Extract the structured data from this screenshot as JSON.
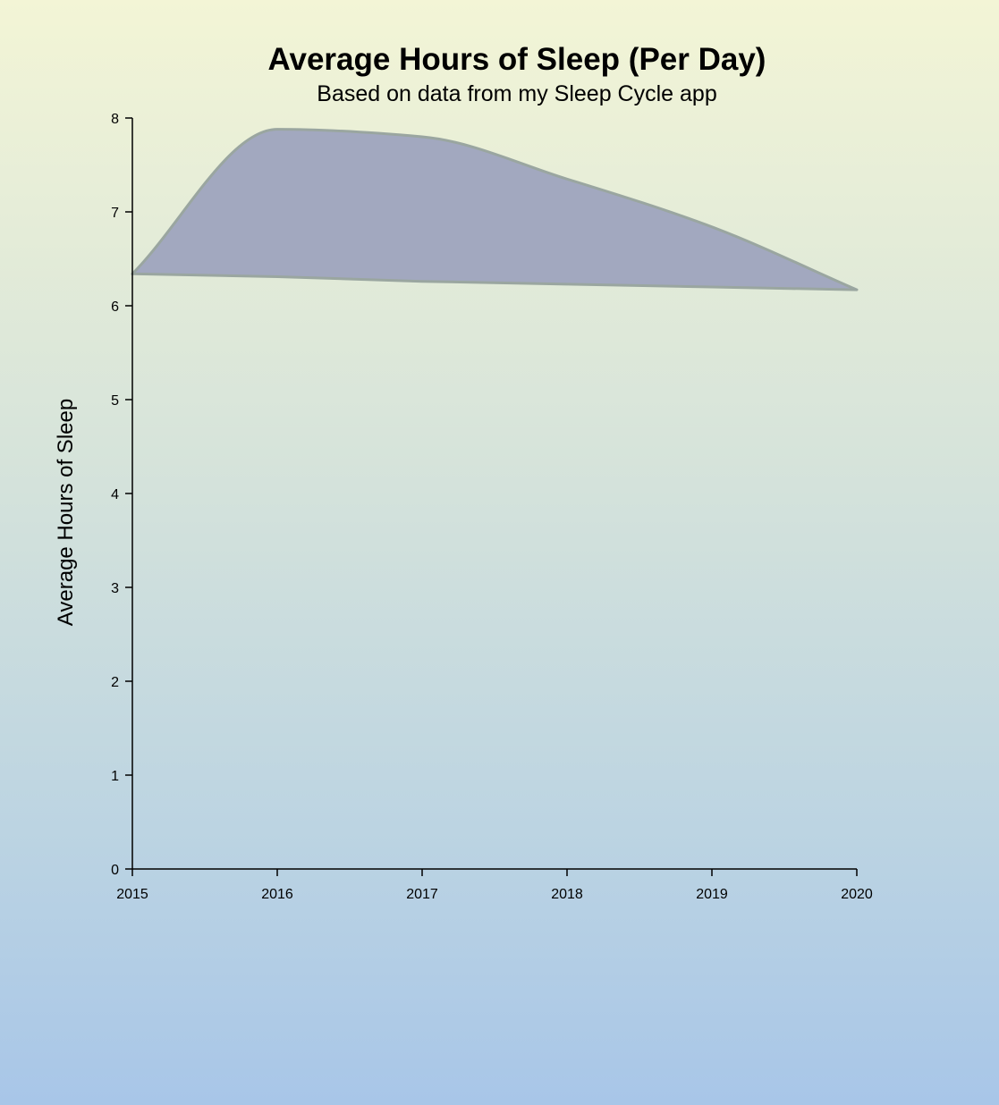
{
  "chart_data": {
    "type": "area",
    "title": "Average Hours of Sleep (Per Day)",
    "subtitle": "Based on data from my Sleep Cycle app",
    "xlabel": "",
    "ylabel": "Average Hours of Sleep",
    "x": [
      2015,
      2016,
      2017,
      2018,
      2019,
      2020
    ],
    "x_tick_labels": [
      "2015",
      "2016",
      "2017",
      "2018",
      "2019",
      "2020"
    ],
    "upper": [
      6.34,
      7.88,
      7.8,
      7.35,
      6.84,
      6.17
    ],
    "lower": [
      6.34,
      6.31,
      6.26,
      6.23,
      6.2,
      6.17
    ],
    "xlim": [
      2015,
      2020
    ],
    "ylim": [
      0,
      8
    ],
    "y_ticks": [
      0,
      1,
      2,
      3,
      4,
      5,
      6,
      7,
      8
    ],
    "y_tick_labels": [
      "0",
      "1",
      "2",
      "3",
      "4",
      "5",
      "6",
      "7",
      "8"
    ],
    "grid": false,
    "legend": "none",
    "colors": {
      "fill": "#a2a8bf",
      "stroke": "#9aa6a0"
    }
  }
}
